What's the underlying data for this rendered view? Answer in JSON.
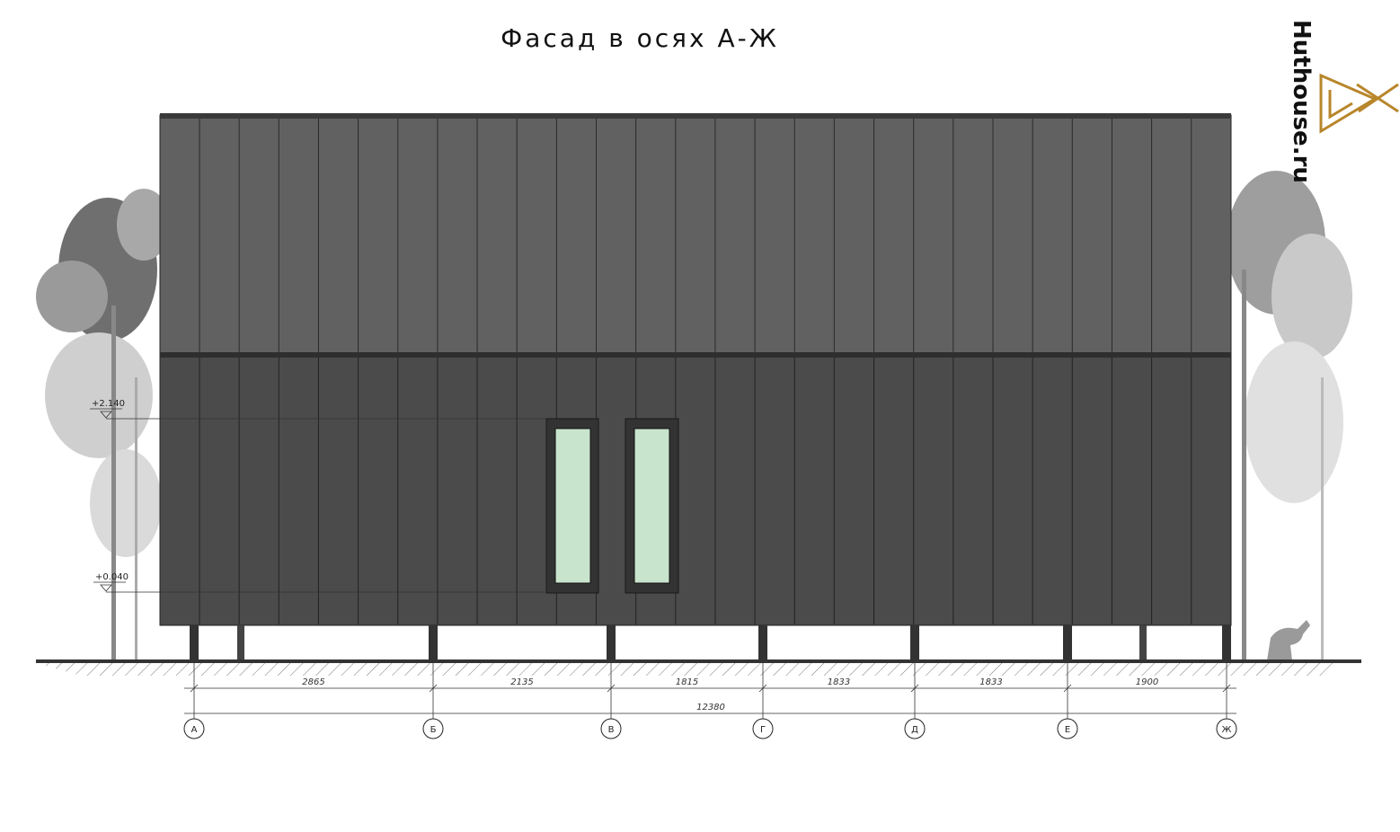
{
  "header": {
    "title": "Фасад в осях А-Ж",
    "logo": "Huthouse.ru"
  },
  "levels": [
    "+2.140",
    "+0.040"
  ],
  "dimensions": [
    "2865",
    "2135",
    "1815",
    "1833",
    "1833",
    "1900"
  ],
  "total_dimension": "12380",
  "axes": [
    "А",
    "Б",
    "В",
    "Г",
    "Д",
    "Е",
    "Ж"
  ]
}
